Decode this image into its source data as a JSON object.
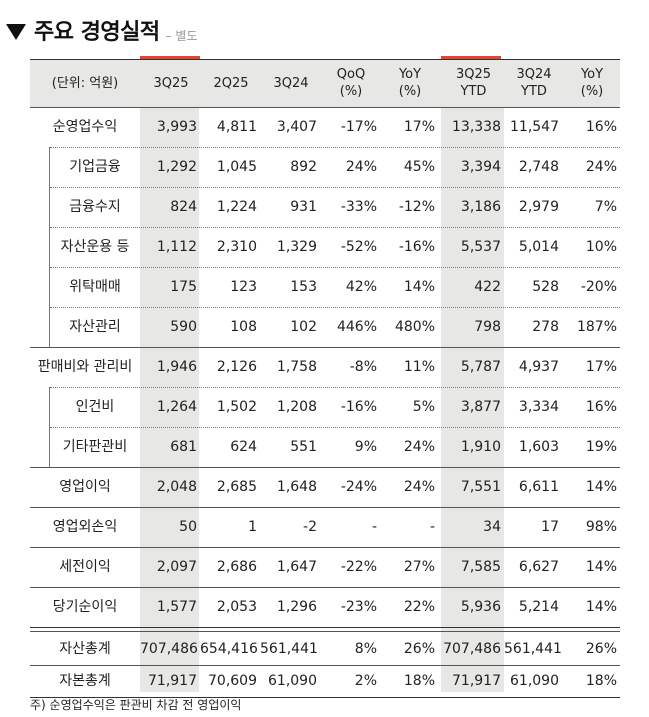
{
  "title": "주요 경영실적",
  "subtitle": "– 별도",
  "columns": [
    {
      "line1": "(단위: 억원)",
      "line2": ""
    },
    {
      "line1": "3Q25",
      "line2": ""
    },
    {
      "line1": "2Q25",
      "line2": ""
    },
    {
      "line1": "3Q24",
      "line2": ""
    },
    {
      "line1": "QoQ",
      "line2": "(%)"
    },
    {
      "line1": "YoY",
      "line2": "(%)"
    },
    {
      "line1": "3Q25",
      "line2": "YTD"
    },
    {
      "line1": "3Q24",
      "line2": "YTD"
    },
    {
      "line1": "YoY",
      "line2": "(%)"
    }
  ],
  "rows": [
    {
      "label": "순영업수익",
      "sub": false,
      "values": [
        "3,993",
        "4,811",
        "3,407",
        "-17%",
        "17%",
        "13,338",
        "11,547",
        "16%"
      ]
    },
    {
      "label": "기업금융",
      "sub": true,
      "values": [
        "1,292",
        "1,045",
        "892",
        "24%",
        "45%",
        "3,394",
        "2,748",
        "24%"
      ]
    },
    {
      "label": "금융수지",
      "sub": true,
      "values": [
        "824",
        "1,224",
        "931",
        "-33%",
        "-12%",
        "3,186",
        "2,979",
        "7%"
      ]
    },
    {
      "label": "자산운용 등",
      "sub": true,
      "values": [
        "1,112",
        "2,310",
        "1,329",
        "-52%",
        "-16%",
        "5,537",
        "5,014",
        "10%"
      ]
    },
    {
      "label": "위탁매매",
      "sub": true,
      "values": [
        "175",
        "123",
        "153",
        "42%",
        "14%",
        "422",
        "528",
        "-20%"
      ]
    },
    {
      "label": "자산관리",
      "sub": true,
      "values": [
        "590",
        "108",
        "102",
        "446%",
        "480%",
        "798",
        "278",
        "187%"
      ]
    },
    {
      "label": "판매비와 관리비",
      "sub": false,
      "values": [
        "1,946",
        "2,126",
        "1,758",
        "-8%",
        "11%",
        "5,787",
        "4,937",
        "17%"
      ]
    },
    {
      "label": "인건비",
      "sub": true,
      "values": [
        "1,264",
        "1,502",
        "1,208",
        "-16%",
        "5%",
        "3,877",
        "3,334",
        "16%"
      ]
    },
    {
      "label": "기타판관비",
      "sub": true,
      "values": [
        "681",
        "624",
        "551",
        "9%",
        "24%",
        "1,910",
        "1,603",
        "19%"
      ]
    },
    {
      "label": "영업이익",
      "sub": false,
      "values": [
        "2,048",
        "2,685",
        "1,648",
        "-24%",
        "24%",
        "7,551",
        "6,611",
        "14%"
      ]
    },
    {
      "label": "영업외손익",
      "sub": false,
      "values": [
        "50",
        "1",
        "-2",
        "-",
        "-",
        "34",
        "17",
        "98%"
      ]
    },
    {
      "label": "세전이익",
      "sub": false,
      "values": [
        "2,097",
        "2,686",
        "1,647",
        "-22%",
        "27%",
        "7,585",
        "6,627",
        "14%"
      ]
    },
    {
      "label": "당기순이익",
      "sub": false,
      "values": [
        "1,577",
        "2,053",
        "1,296",
        "-23%",
        "22%",
        "5,936",
        "5,214",
        "14%"
      ]
    },
    {
      "label": "자산총계",
      "sub": false,
      "values": [
        "707,486",
        "654,416",
        "561,441",
        "8%",
        "26%",
        "707,486",
        "561,441",
        "26%"
      ]
    },
    {
      "label": "자본총계",
      "sub": false,
      "values": [
        "71,917",
        "70,609",
        "61,090",
        "2%",
        "18%",
        "71,917",
        "61,090",
        "18%"
      ]
    }
  ],
  "footnote": "주) 순영업수익은 판관비 차감 전 영업이익"
}
